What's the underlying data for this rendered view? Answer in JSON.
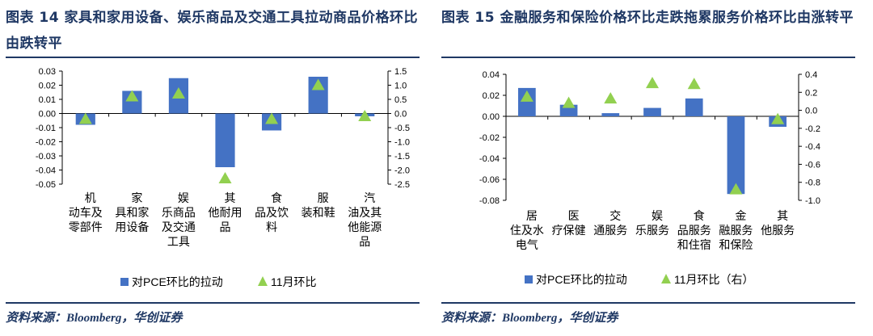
{
  "colors": {
    "bar": "#4472c4",
    "triangle": "#92d050",
    "title": "#1f3864",
    "axis": "#000000"
  },
  "left": {
    "title": "图表 14 家具和家用设备、娱乐商品及交通工具拉动商品价格环比由跌转平",
    "source": "资料来源：Bloomberg，华创证券"
  },
  "right": {
    "title": "图表 15 金融服务和保险价格环比走跌拖累服务价格环比由涨转平",
    "source": "资料来源：Bloomberg，华创证券"
  },
  "chart_data": [
    {
      "type": "bar",
      "categories": [
        "机动车及零部件",
        "家具和家用设备",
        "娱乐商品及交通工具",
        "其他耐用品",
        "食品及饮料",
        "服装和鞋",
        "汽油及其他能源品"
      ],
      "category_lines": [
        [
          "机",
          "动车及",
          "零部件"
        ],
        [
          "家",
          "具和家",
          "用设备"
        ],
        [
          "娱",
          "乐商品",
          "及交通",
          "工具"
        ],
        [
          "其",
          "他耐用",
          "品"
        ],
        [
          "食",
          "品及饮",
          "料"
        ],
        [
          "服",
          "装和鞋"
        ],
        [
          "汽",
          "油及其",
          "他能源",
          "品"
        ]
      ],
      "series": [
        {
          "name": "对PCE环比的拉动",
          "kind": "bar",
          "axis": "left",
          "values": [
            -0.008,
            0.016,
            0.025,
            -0.038,
            -0.012,
            0.026,
            -0.002
          ]
        },
        {
          "name": "11月环比",
          "kind": "triangle",
          "axis": "right",
          "values": [
            -0.2,
            0.6,
            0.7,
            -2.3,
            -0.2,
            1.0,
            -0.1
          ]
        }
      ],
      "ylim_left": [
        -0.05,
        0.03
      ],
      "yticks_left": [
        "0.03",
        "0.02",
        "0.01",
        "0.00",
        "-0.01",
        "-0.02",
        "-0.03",
        "-0.04",
        "-0.05"
      ],
      "ylim_right": [
        -2.5,
        1.5
      ],
      "yticks_right": [
        "1.5",
        "1.0",
        "0.5",
        "0.0",
        "-0.5",
        "-1.0",
        "-1.5",
        "-2.0",
        "-2.5"
      ],
      "legend": [
        "对PCE环比的拉动",
        "11月环比"
      ],
      "legend_position": "bottom"
    },
    {
      "type": "bar",
      "categories": [
        "居住及水电气",
        "医疗保健",
        "交通服务",
        "娱乐服务",
        "食品服务和住宿",
        "金融服务和保险",
        "其他服务"
      ],
      "category_lines": [
        [
          "居",
          "住及水",
          "电气"
        ],
        [
          "医",
          "疗保健"
        ],
        [
          "交",
          "通服务"
        ],
        [
          "娱",
          "乐服务"
        ],
        [
          "食",
          "品服务",
          "和住宿"
        ],
        [
          "金",
          "融服务",
          "和保险"
        ],
        [
          "其",
          "他服务"
        ]
      ],
      "series": [
        {
          "name": "对PCE环比的拉动",
          "kind": "bar",
          "axis": "left",
          "values": [
            0.027,
            0.011,
            0.003,
            0.008,
            0.017,
            -0.074,
            -0.01
          ]
        },
        {
          "name": "11月环比（右）",
          "kind": "triangle",
          "axis": "right",
          "values": [
            0.15,
            0.08,
            0.13,
            0.3,
            0.29,
            -0.88,
            -0.1
          ]
        }
      ],
      "ylim_left": [
        -0.08,
        0.04
      ],
      "yticks_left": [
        "0.04",
        "0.02",
        "0.00",
        "-0.02",
        "-0.04",
        "-0.06",
        "-0.08"
      ],
      "ylim_right": [
        -1.0,
        0.4
      ],
      "yticks_right": [
        "0.4",
        "0.2",
        "0.0",
        "-0.2",
        "-0.4",
        "-0.6",
        "-0.8",
        "-1.0"
      ],
      "legend": [
        "对PCE环比的拉动",
        "11月环比（右）"
      ],
      "legend_position": "bottom"
    }
  ]
}
